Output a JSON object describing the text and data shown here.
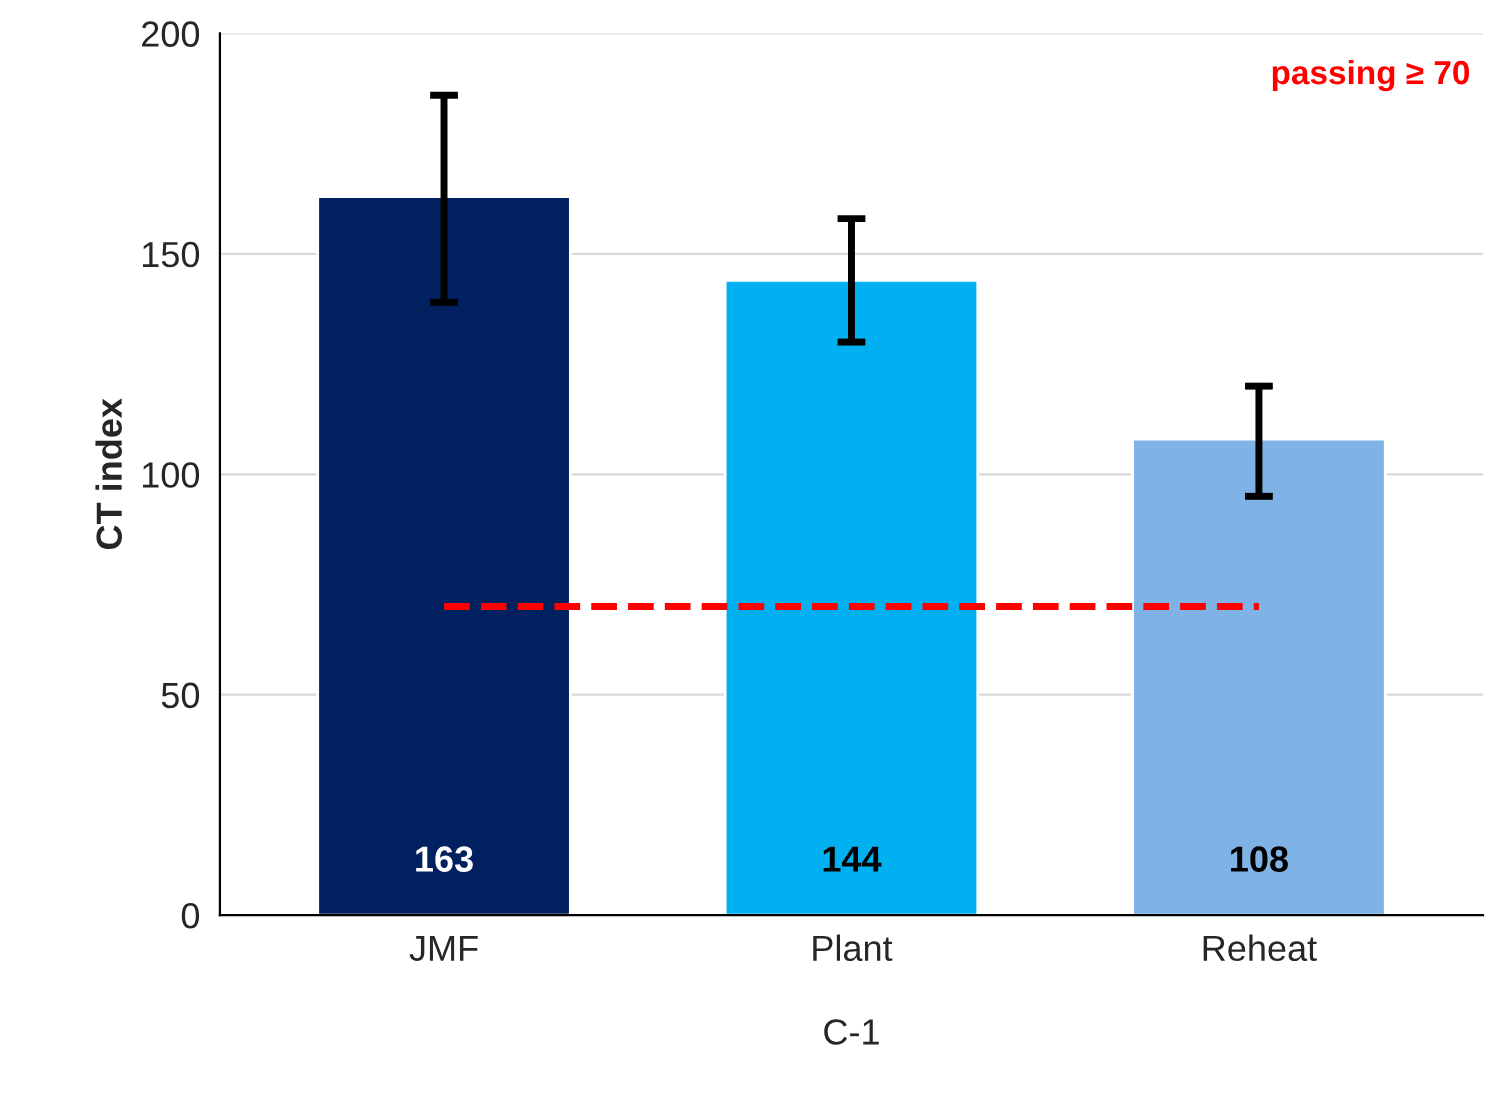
{
  "chart_data": {
    "type": "bar",
    "xlabel": "C-1",
    "ylabel": "CT index",
    "categories": [
      "JMF",
      "Plant",
      "Reheat"
    ],
    "values": [
      163,
      144,
      108
    ],
    "colors": [
      "#002060",
      "#00b0f0",
      "#7fb2e5"
    ],
    "errors": [
      [
        139,
        186
      ],
      [
        130,
        158
      ],
      [
        95,
        120
      ]
    ],
    "ylim": [
      0,
      200
    ],
    "yticks": [
      0,
      50,
      100,
      150,
      200
    ],
    "grid": "y",
    "data_labels": true,
    "ref_lines": [
      {
        "axis": "y",
        "value": 70,
        "label": "passing ≥ 70",
        "color": "#ff0000",
        "line_style": "dashed"
      }
    ]
  }
}
